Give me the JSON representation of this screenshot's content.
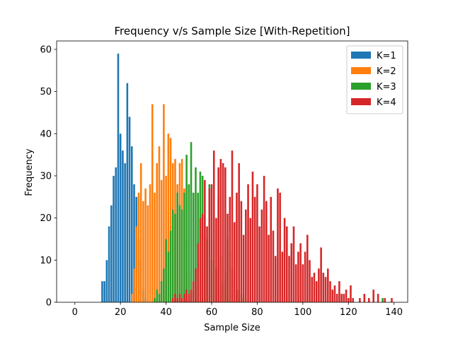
{
  "chart_data": {
    "type": "bar",
    "title": "Frequency v/s Sample Size [With-Repetition]",
    "xlabel": "Sample Size",
    "ylabel": "Frequency",
    "xlim": [
      -8,
      146
    ],
    "ylim": [
      0,
      62
    ],
    "xticks": [
      0,
      20,
      40,
      60,
      80,
      100,
      120,
      140
    ],
    "yticks": [
      0,
      10,
      20,
      30,
      40,
      50,
      60
    ],
    "grid": false,
    "legend_position": "top-right",
    "series": [
      {
        "name": "K=1",
        "color": "#1f77b4",
        "x": [
          12,
          13,
          14,
          15,
          16,
          17,
          18,
          19,
          20,
          21,
          22,
          23,
          24,
          25,
          26,
          27,
          28,
          29,
          30,
          31
        ],
        "values": [
          5,
          5,
          10,
          18,
          23,
          30,
          32,
          59,
          40,
          36,
          33,
          52,
          44,
          37,
          28,
          25,
          15,
          10,
          3,
          1
        ]
      },
      {
        "name": "K=2",
        "color": "#ff7f0e",
        "x": [
          25,
          26,
          27,
          28,
          29,
          30,
          31,
          32,
          33,
          34,
          35,
          36,
          37,
          38,
          39,
          40,
          41,
          42,
          43,
          44,
          45,
          46,
          47,
          48,
          49,
          50
        ],
        "values": [
          2,
          8,
          18,
          26,
          33,
          24,
          27,
          23,
          28,
          47,
          26,
          33,
          37,
          29,
          47,
          30,
          40,
          39,
          33,
          34,
          28,
          33,
          34,
          27,
          15,
          7
        ]
      },
      {
        "name": "K=3",
        "color": "#2ca02c",
        "x": [
          35,
          36,
          37,
          38,
          39,
          40,
          41,
          42,
          43,
          44,
          45,
          46,
          47,
          48,
          49,
          50,
          51,
          52,
          53,
          54,
          55,
          56,
          57,
          58,
          59,
          60,
          61,
          62,
          63,
          64,
          65,
          66,
          67,
          68,
          69,
          70,
          71,
          72,
          73,
          74,
          135
        ],
        "values": [
          1,
          3,
          2,
          5,
          8,
          15,
          12,
          17,
          22,
          21,
          26,
          23,
          22,
          26,
          35,
          28,
          38,
          26,
          32,
          26,
          31,
          30,
          18,
          15,
          28,
          10,
          15,
          8,
          25,
          11,
          5,
          7,
          15,
          12,
          8,
          5,
          3,
          3,
          2,
          1,
          1
        ]
      },
      {
        "name": "K=4",
        "color": "#d62728",
        "x": [
          43,
          44,
          45,
          46,
          47,
          48,
          49,
          50,
          51,
          52,
          53,
          54,
          55,
          56,
          57,
          58,
          59,
          60,
          61,
          62,
          63,
          64,
          65,
          66,
          67,
          68,
          69,
          70,
          71,
          72,
          73,
          74,
          75,
          76,
          77,
          78,
          79,
          80,
          81,
          82,
          83,
          84,
          85,
          86,
          87,
          88,
          89,
          90,
          91,
          92,
          93,
          94,
          95,
          96,
          97,
          98,
          99,
          100,
          101,
          102,
          103,
          104,
          105,
          106,
          107,
          108,
          109,
          110,
          111,
          112,
          113,
          114,
          115,
          116,
          117,
          118,
          119,
          120,
          121,
          122,
          125,
          127,
          129,
          131,
          133,
          136,
          139
        ],
        "values": [
          1,
          2,
          1,
          2,
          1,
          2,
          3,
          2,
          3,
          5,
          8,
          14,
          20,
          21,
          29,
          18,
          27,
          28,
          36,
          20,
          32,
          34,
          33,
          32,
          21,
          25,
          36,
          19,
          26,
          33,
          24,
          16,
          22,
          28,
          20,
          31,
          25,
          28,
          18,
          22,
          30,
          24,
          16,
          25,
          17,
          11,
          27,
          26,
          12,
          20,
          18,
          11,
          14,
          18,
          9,
          12,
          14,
          9,
          12,
          16,
          10,
          6,
          7,
          5,
          8,
          13,
          7,
          6,
          8,
          5,
          3,
          4,
          2,
          5,
          2,
          2,
          3,
          1,
          4,
          1,
          1,
          2,
          1,
          3,
          2,
          1,
          1
        ]
      }
    ]
  }
}
